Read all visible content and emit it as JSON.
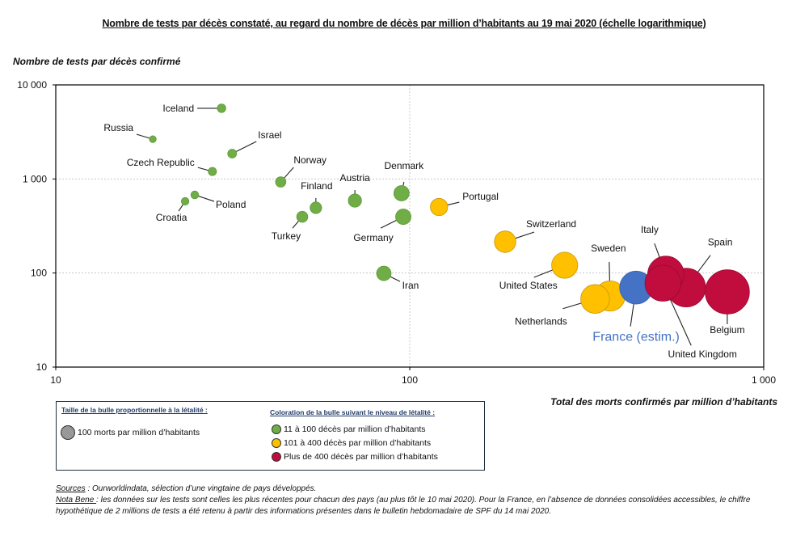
{
  "title": "Nombre de tests par décès constaté, au regard du nombre de décès par million d’habitants au 19 mai 2020 (échelle logarithmique)",
  "legend": {
    "size_heading": "Taille de la bulle proportionnelle à la létalité :",
    "size_item": "100 morts par million d’habitants",
    "color_heading": "Coloration de la bulle suivant le niveau de létalité :",
    "color_items": [
      {
        "label": "11 à 100 décès par million d’habitants",
        "color": "#70ad47"
      },
      {
        "label": "101 à 400 décès par million d’habitants",
        "color": "#ffc000"
      },
      {
        "label": "Plus de 400 décès par million d’habitants",
        "color": "#c00d3e"
      }
    ]
  },
  "notes": {
    "sources_label": "Sources",
    "sources_text": " : Ourworldindata, sélection d’une vingtaine de pays développés.",
    "nb_label": "Nota Bene ",
    "nb_text": ": les données sur les tests sont celles les plus récentes pour chacun des pays (au plus tôt le 10 mai 2020). Pour la France, en l’absence de données consolidées accessibles, le chiffre hypothétique de 2 millions de tests a été retenu à partir des informations présentes dans le bulletin hebdomadaire de SPF du 14 mai 2020."
  },
  "chart_data": {
    "type": "scatter",
    "subtype": "bubble",
    "title": "Nombre de tests par décès constaté, au regard du nombre de décès par million d’habitants au 19 mai 2020 (échelle logarithmique)",
    "xlabel": "Total des morts confirmés par million d’habitants",
    "ylabel": "Nombre de tests par décès confirmé",
    "xscale": "log",
    "yscale": "log",
    "xlim": [
      10,
      1000
    ],
    "ylim": [
      10,
      10000
    ],
    "xticks": [
      "10",
      "100",
      "1 000"
    ],
    "yticks": [
      "10",
      "100",
      "1 000",
      "10 000"
    ],
    "grid": true,
    "colors": {
      "low": "#70ad47",
      "mid": "#ffc000",
      "high": "#c00d3e",
      "france": "#4472c4"
    },
    "points": [
      {
        "name": "Iceland",
        "x": 29.4,
        "y": 5640,
        "group": "low"
      },
      {
        "name": "Russia",
        "x": 18.8,
        "y": 2650,
        "group": "low"
      },
      {
        "name": "Israel",
        "x": 31.5,
        "y": 1860,
        "group": "low"
      },
      {
        "name": "Czech Republic",
        "x": 27.7,
        "y": 1200,
        "group": "low"
      },
      {
        "name": "Norway",
        "x": 43.2,
        "y": 930,
        "group": "low"
      },
      {
        "name": "Poland",
        "x": 24.7,
        "y": 677,
        "group": "low"
      },
      {
        "name": "Croatia",
        "x": 23.2,
        "y": 578,
        "group": "low"
      },
      {
        "name": "Finland",
        "x": 54.3,
        "y": 494,
        "group": "low"
      },
      {
        "name": "Turkey",
        "x": 49.7,
        "y": 396,
        "group": "low"
      },
      {
        "name": "Austria",
        "x": 70,
        "y": 589,
        "group": "low"
      },
      {
        "name": "Denmark",
        "x": 94.8,
        "y": 705,
        "group": "low"
      },
      {
        "name": "Germany",
        "x": 95.9,
        "y": 396,
        "group": "low"
      },
      {
        "name": "Iran",
        "x": 84.5,
        "y": 99,
        "group": "low"
      },
      {
        "name": "Portugal",
        "x": 121,
        "y": 503,
        "group": "mid"
      },
      {
        "name": "Switzerland",
        "x": 186,
        "y": 215,
        "group": "mid"
      },
      {
        "name": "United States",
        "x": 274,
        "y": 121,
        "group": "mid"
      },
      {
        "name": "Netherlands",
        "x": 334,
        "y": 53,
        "group": "mid"
      },
      {
        "name": "Sweden",
        "x": 368,
        "y": 57,
        "group": "mid"
      },
      {
        "name": "France (estim.)",
        "x": 436,
        "y": 70,
        "group": "france"
      },
      {
        "name": "Italy",
        "x": 529,
        "y": 97,
        "group": "high"
      },
      {
        "name": "United Kingdom",
        "x": 519,
        "y": 78,
        "group": "high"
      },
      {
        "name": "Spain",
        "x": 604,
        "y": 70,
        "group": "high"
      },
      {
        "name": "Belgium",
        "x": 789,
        "y": 63,
        "group": "high"
      }
    ]
  }
}
